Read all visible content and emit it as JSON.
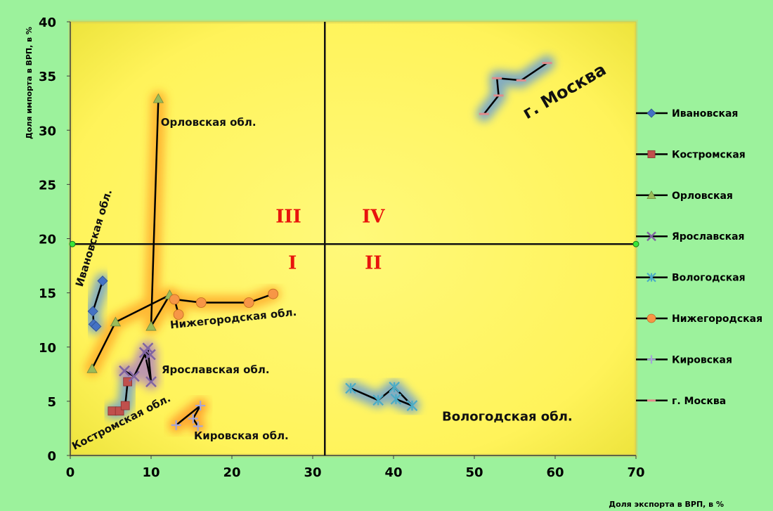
{
  "chart_data": {
    "type": "scatter",
    "xlabel": "Доля экспорта  в ВРП, в %",
    "ylabel": "Доля импорта  в ВРП, в %",
    "xlim": [
      0,
      70
    ],
    "ylim": [
      0,
      40
    ],
    "x_ticks": [
      "0",
      "10",
      "20",
      "30",
      "40",
      "50",
      "60",
      "70"
    ],
    "y_ticks": [
      "0",
      "5",
      "10",
      "15",
      "20",
      "25",
      "30",
      "35",
      "40"
    ],
    "grid": false,
    "legend_position": "right",
    "divider_x": 31.5,
    "divider_y": 19.5,
    "quadrants": [
      {
        "label": "I",
        "x": 27.5,
        "y": 17.2
      },
      {
        "label": "II",
        "x": 37.5,
        "y": 17.2
      },
      {
        "label": "III",
        "x": 27,
        "y": 21.5
      },
      {
        "label": "IV",
        "x": 37.5,
        "y": 21.5
      }
    ],
    "series": [
      {
        "name": "Ивановская",
        "color": "#4472c4",
        "marker": "diamond",
        "glow": "#4f8fe8",
        "points": [
          [
            4,
            16.1
          ],
          [
            2.8,
            13.3
          ],
          [
            2.9,
            12.1
          ],
          [
            3.2,
            11.9
          ]
        ]
      },
      {
        "name": "Костромская",
        "color": "#c0504d",
        "marker": "square",
        "glow": "#4f8fe8",
        "points": [
          [
            5.2,
            4.1
          ],
          [
            6.1,
            4.1
          ],
          [
            6.8,
            4.6
          ],
          [
            7.1,
            6.8
          ]
        ]
      },
      {
        "name": "Орловская",
        "color": "#9bbb59",
        "marker": "triangle",
        "glow": "#ffa020",
        "points": [
          [
            10.9,
            32.9
          ],
          [
            10,
            11.9
          ],
          [
            12.3,
            14.8
          ],
          [
            5.6,
            12.3
          ],
          [
            2.7,
            8
          ]
        ]
      },
      {
        "name": "Ярославская",
        "color": "#8064a2",
        "marker": "x",
        "glow": "#a070d0",
        "points": [
          [
            6.7,
            7.8
          ],
          [
            7.9,
            7.3
          ],
          [
            9.6,
            9.9
          ],
          [
            10,
            6.8
          ],
          [
            9.2,
            9.5
          ],
          [
            9.9,
            9.3
          ]
        ]
      },
      {
        "name": "Вологодская",
        "color": "#4bacc6",
        "marker": "star",
        "glow": "#4f8fe8",
        "points": [
          [
            34.7,
            6.2
          ],
          [
            38.1,
            5.1
          ],
          [
            40.1,
            6.3
          ],
          [
            42.3,
            4.6
          ],
          [
            40.3,
            5.2
          ]
        ]
      },
      {
        "name": "Нижегородская",
        "color": "#f79646",
        "marker": "circle",
        "glow": "#ffa020",
        "points": [
          [
            13.4,
            13
          ],
          [
            12.9,
            14.4
          ],
          [
            16.2,
            14.1
          ],
          [
            22.1,
            14.1
          ],
          [
            25.1,
            14.9
          ]
        ]
      },
      {
        "name": "Кировская",
        "color": "#a5a5d8",
        "marker": "plus",
        "glow": "#ff8a20",
        "points": [
          [
            13.1,
            2.8
          ],
          [
            16.1,
            4.6
          ],
          [
            15.2,
            3.4
          ],
          [
            15.8,
            2.7
          ]
        ]
      },
      {
        "name": "г. Москва",
        "color": "#e08b8b",
        "marker": "dash",
        "glow": "#4f8fe8",
        "points": [
          [
            51.2,
            31.5
          ],
          [
            53,
            33.2
          ],
          [
            52.8,
            34.8
          ],
          [
            55.8,
            34.6
          ],
          [
            59,
            36.2
          ]
        ]
      }
    ],
    "annotations": [
      {
        "text": "Орловская обл.",
        "x": 11.2,
        "y": 30.4,
        "rotate": 0,
        "style": "region"
      },
      {
        "text": "Ивановская обл.",
        "x": 1.5,
        "y": 15.5,
        "rotate": -73,
        "style": "region"
      },
      {
        "text": "Нижегородская обл.",
        "x": 12.4,
        "y": 11.7,
        "rotate": -6,
        "style": "region"
      },
      {
        "text": "Ярославская обл.",
        "x": 11.3,
        "y": 7.6,
        "rotate": 0,
        "style": "region"
      },
      {
        "text": "Костромская обл.",
        "x": 0.5,
        "y": 0.5,
        "rotate": -27,
        "style": "region"
      },
      {
        "text": "Кировская обл.",
        "x": 15.3,
        "y": 1.5,
        "rotate": 0,
        "style": "region"
      },
      {
        "text": "Вологодская обл.",
        "x": 46,
        "y": 3.2,
        "rotate": 0,
        "style": "region-big"
      },
      {
        "text": "г. Москва",
        "x": 56.5,
        "y": 31,
        "rotate": -30,
        "style": "big"
      }
    ]
  }
}
